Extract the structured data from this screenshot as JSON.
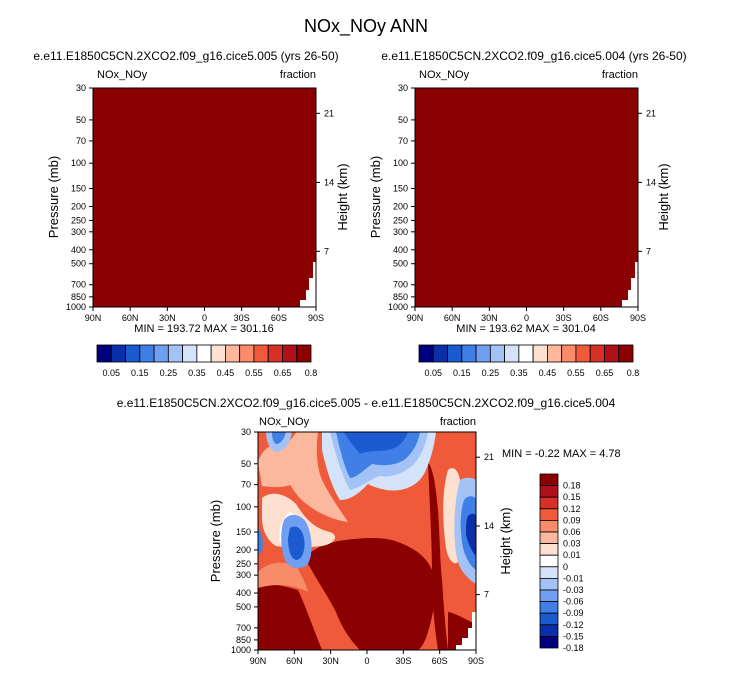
{
  "figure": {
    "title": "NOx_NOy ANN"
  },
  "colors": {
    "frame": "#000000",
    "dark_red": "#8b0000",
    "red": "#d73027",
    "orange_red": "#ef5a3a",
    "salmon": "#f4a582",
    "peach": "#fddbc7",
    "light_blue": "#d1e5f0",
    "blue": "#4393c3",
    "dark_blue": "#08306b"
  },
  "chart_data": [
    {
      "id": "panel-1",
      "type": "heatmap",
      "title": "e.e11.E1850C5CN.2XCO2.f09_g16.cice5.005 (yrs 26-50)",
      "left_label": "NOx_NOy",
      "right_label": "fraction",
      "ylabel": "Pressure (mb)",
      "ylabel_right": "Height (km)",
      "x_ticks": [
        "90N",
        "60N",
        "30N",
        "0",
        "30S",
        "60S",
        "90S"
      ],
      "x_values": [
        -90,
        -60,
        -30,
        0,
        30,
        60,
        90
      ],
      "y_ticks": [
        "30",
        "50",
        "70",
        "100",
        "150",
        "200",
        "250",
        "300",
        "400",
        "500",
        "700",
        "850",
        "1000"
      ],
      "y_values": [
        30,
        50,
        70,
        100,
        150,
        200,
        250,
        300,
        400,
        500,
        700,
        850,
        1000
      ],
      "height_ticks": [
        "21",
        "14",
        "7"
      ],
      "height_pressures": [
        45,
        136,
        410
      ],
      "ylim": [
        1000,
        30
      ],
      "stats": "MIN = 193.72  MAX = 301.16",
      "min": 193.72,
      "max": 301.16,
      "fill": "all values above top contour level (dark red)"
    },
    {
      "id": "panel-2",
      "type": "heatmap",
      "title": "e.e11.E1850C5CN.2XCO2.f09_g16.cice5.004 (yrs 26-50)",
      "left_label": "NOx_NOy",
      "right_label": "fraction",
      "ylabel": "Pressure (mb)",
      "ylabel_right": "Height (km)",
      "x_ticks": [
        "90N",
        "60N",
        "30N",
        "0",
        "30S",
        "60S",
        "90S"
      ],
      "x_values": [
        -90,
        -60,
        -30,
        0,
        30,
        60,
        90
      ],
      "y_ticks": [
        "30",
        "50",
        "70",
        "100",
        "150",
        "200",
        "250",
        "300",
        "400",
        "500",
        "700",
        "850",
        "1000"
      ],
      "y_values": [
        30,
        50,
        70,
        100,
        150,
        200,
        250,
        300,
        400,
        500,
        700,
        850,
        1000
      ],
      "height_ticks": [
        "21",
        "14",
        "7"
      ],
      "height_pressures": [
        45,
        136,
        410
      ],
      "ylim": [
        1000,
        30
      ],
      "stats": "MIN = 193.62  MAX = 301.04",
      "min": 193.62,
      "max": 301.04,
      "fill": "all values above top contour level (dark red)"
    },
    {
      "id": "panel-diff",
      "type": "heatmap",
      "title": "e.e11.E1850C5CN.2XCO2.f09_g16.cice5.005 - e.e11.E1850C5CN.2XCO2.f09_g16.cice5.004",
      "left_label": "NOx_NOy",
      "right_label": "fraction",
      "ylabel": "Pressure (mb)",
      "ylabel_right": "Height (km)",
      "x_ticks": [
        "90N",
        "60N",
        "30N",
        "0",
        "30S",
        "60S",
        "90S"
      ],
      "x_values": [
        -90,
        -60,
        -30,
        0,
        30,
        60,
        90
      ],
      "y_ticks": [
        "30",
        "50",
        "70",
        "100",
        "150",
        "200",
        "250",
        "300",
        "400",
        "500",
        "700",
        "850",
        "1000"
      ],
      "y_values": [
        30,
        50,
        70,
        100,
        150,
        200,
        250,
        300,
        400,
        500,
        700,
        850,
        1000
      ],
      "height_ticks": [
        "21",
        "14",
        "7"
      ],
      "height_pressures": [
        45,
        136,
        410
      ],
      "ylim": [
        1000,
        30
      ],
      "stats": "MIN =  -0.22  MAX =   4.78",
      "min": -0.22,
      "max": 4.78
    }
  ],
  "colorbar_top": {
    "labels": [
      "0.05",
      "0.15",
      "0.25",
      "0.35",
      "0.45",
      "0.55",
      "0.65",
      "0.8"
    ],
    "colors": [
      "#00007f",
      "#0a2fa8",
      "#1c5ad0",
      "#3f7fe6",
      "#6f9ff0",
      "#a3c3f6",
      "#d4e3fa",
      "#ffffff",
      "#fde0d0",
      "#fbb89c",
      "#f78b6a",
      "#ef5a3a",
      "#d73027",
      "#b0101a",
      "#8b0000"
    ]
  },
  "colorbar_diff": {
    "labels": [
      "0.18",
      "0.15",
      "0.12",
      "0.09",
      "0.06",
      "0.03",
      "0.01",
      "0",
      "-0.01",
      "-0.03",
      "-0.06",
      "-0.09",
      "-0.12",
      "-0.15",
      "-0.18"
    ],
    "colors": [
      "#8b0000",
      "#b0101a",
      "#d73027",
      "#ef5a3a",
      "#f78b6a",
      "#fbb89c",
      "#fde0d0",
      "#ffffff",
      "#d4e3fa",
      "#a3c3f6",
      "#6f9ff0",
      "#3f7fe6",
      "#1c5ad0",
      "#0a2fa8",
      "#00007f"
    ]
  }
}
